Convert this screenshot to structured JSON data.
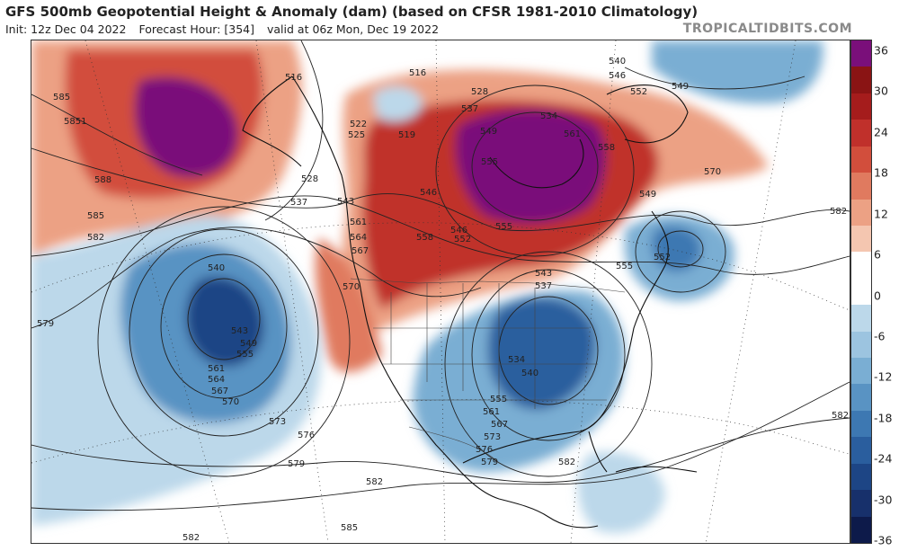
{
  "header": {
    "title": "GFS 500mb Geopotential Height & Anomaly (dam) (based on CFSR 1981-2010 Climatology)",
    "init": "Init: 12z Dec 04 2022",
    "forecast_hour": "Forecast Hour: [354]",
    "valid": "valid at 06z Mon, Dec 19 2022",
    "brand": "TROPICALTIDBITS.COM"
  },
  "colorbar": {
    "tick_labels": [
      "36",
      "30",
      "24",
      "18",
      "12",
      "6",
      "0",
      "-6",
      "-12",
      "-18",
      "-24",
      "-30",
      "-36"
    ],
    "colors": [
      "#7a0f7a",
      "#8a1414",
      "#a51c1c",
      "#c0302b",
      "#d24e3c",
      "#e07a5f",
      "#eca184",
      "#f4c6b0",
      "#ffffff",
      "#ffffff",
      "#bcd8ea",
      "#9cc4e0",
      "#7aaed3",
      "#5993c3",
      "#3d78b2",
      "#2a5e9e",
      "#1d4585",
      "#17306b",
      "#0d1a4a"
    ]
  },
  "map": {
    "contour_labels": [
      {
        "text": "585"
      },
      {
        "text": "5851"
      },
      {
        "text": "588"
      },
      {
        "text": "585"
      },
      {
        "text": "582"
      },
      {
        "text": "579"
      },
      {
        "text": "540"
      },
      {
        "text": "543"
      },
      {
        "text": "549"
      },
      {
        "text": "555"
      },
      {
        "text": "561"
      },
      {
        "text": "564"
      },
      {
        "text": "567"
      },
      {
        "text": "570"
      },
      {
        "text": "573"
      },
      {
        "text": "576"
      },
      {
        "text": "579"
      },
      {
        "text": "582"
      },
      {
        "text": "582"
      },
      {
        "text": "585"
      },
      {
        "text": "516"
      },
      {
        "text": "516"
      },
      {
        "text": "522"
      },
      {
        "text": "525"
      },
      {
        "text": "519"
      },
      {
        "text": "528"
      },
      {
        "text": "537"
      },
      {
        "text": "543"
      },
      {
        "text": "546"
      },
      {
        "text": "561"
      },
      {
        "text": "564"
      },
      {
        "text": "567"
      },
      {
        "text": "570"
      },
      {
        "text": "558"
      },
      {
        "text": "528"
      },
      {
        "text": "537"
      },
      {
        "text": "534"
      },
      {
        "text": "549"
      },
      {
        "text": "555"
      },
      {
        "text": "561"
      },
      {
        "text": "558"
      },
      {
        "text": "540"
      },
      {
        "text": "546"
      },
      {
        "text": "552"
      },
      {
        "text": "549"
      },
      {
        "text": "570"
      },
      {
        "text": "549"
      },
      {
        "text": "552"
      },
      {
        "text": "555"
      },
      {
        "text": "582"
      },
      {
        "text": "555"
      },
      {
        "text": "543"
      },
      {
        "text": "537"
      },
      {
        "text": "534"
      },
      {
        "text": "540"
      },
      {
        "text": "555"
      },
      {
        "text": "561"
      },
      {
        "text": "567"
      },
      {
        "text": "573"
      },
      {
        "text": "576"
      },
      {
        "text": "579"
      },
      {
        "text": "582"
      },
      {
        "text": "582"
      },
      {
        "text": "552"
      },
      {
        "text": "546"
      }
    ]
  }
}
